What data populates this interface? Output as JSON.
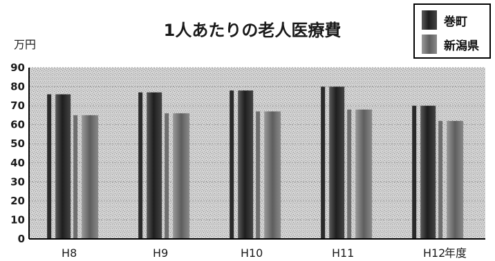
{
  "chart_data": {
    "type": "bar",
    "title": "1人あたりの老人医療費",
    "ylabel": "万円",
    "xlabel": "年度",
    "ylim": [
      0,
      90
    ],
    "yticks": [
      0,
      10,
      20,
      30,
      40,
      50,
      60,
      70,
      80,
      90
    ],
    "categories": [
      "H8",
      "H9",
      "H10",
      "H11",
      "H12"
    ],
    "series": [
      {
        "name": "巻町",
        "values": [
          76,
          77,
          78,
          80,
          70
        ]
      },
      {
        "name": "新潟県",
        "values": [
          65,
          66,
          67,
          68,
          62
        ]
      }
    ],
    "grid": true,
    "legend_position": "top-right"
  },
  "colors": {
    "background": "#ffffff",
    "plot_area": "#cfcfcf",
    "series_1": "#3a3a3a",
    "series_2": "#7a7a7a",
    "axis": "#000000"
  }
}
